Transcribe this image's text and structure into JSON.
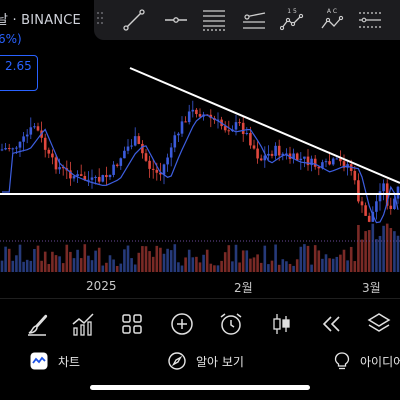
{
  "header": {
    "title": "날 · BINANCE",
    "change_pct": "6%)",
    "price_badge": "2.65"
  },
  "drawing_toolbar": {
    "tools": [
      "trend-line-tool",
      "horizontal-ray-tool",
      "fib-retracement-tool",
      "parallel-channel-tool",
      "elliott-wave-tool",
      "abc-pattern-tool",
      "price-range-tool"
    ],
    "labels": {
      "wave": "1 5",
      "abc": "A C"
    }
  },
  "x_axis": {
    "labels": [
      "2025",
      "2월",
      "3월"
    ]
  },
  "bottom_toolbar": {
    "tools": [
      "brush-icon",
      "indicators-icon",
      "layout-grid-icon",
      "add-icon",
      "alert-clock-icon",
      "candle-style-icon",
      "replay-icon",
      "layers-icon"
    ]
  },
  "nav": {
    "items": [
      {
        "label": "차트",
        "icon": "chart-icon"
      },
      {
        "label": "알아 보기",
        "icon": "compass-icon"
      },
      {
        "label": "아이디어",
        "icon": "lightbulb-icon"
      }
    ]
  },
  "colors": {
    "bull": "#3b5bdb",
    "bear": "#e0483e",
    "ma": "#3d5ee0",
    "accent": "#2962ff",
    "background": "#000000"
  }
}
